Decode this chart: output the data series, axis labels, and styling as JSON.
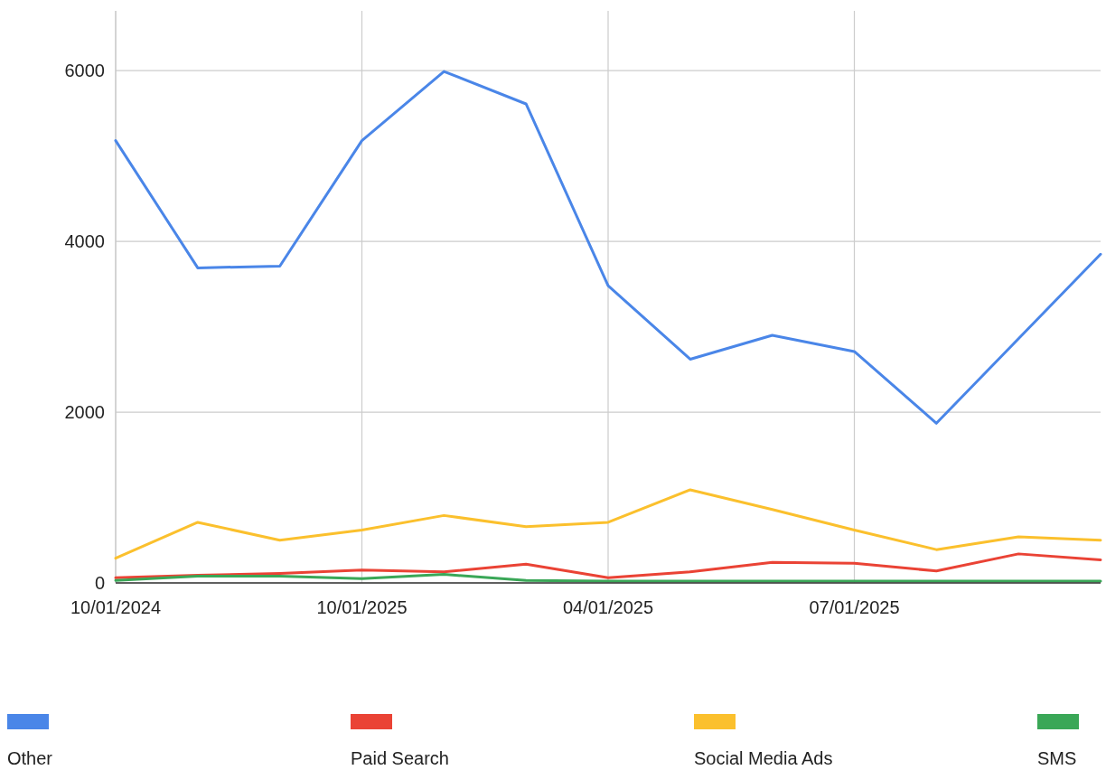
{
  "chart_data": {
    "type": "line",
    "categories": [
      "10/01/2024",
      null,
      null,
      "10/01/2025",
      null,
      null,
      "04/01/2025",
      null,
      null,
      "07/01/2025",
      null,
      null,
      null
    ],
    "series": [
      {
        "name": "Other",
        "color": "#4a86e8",
        "values": [
          5180,
          3690,
          3710,
          5180,
          5990,
          5610,
          3480,
          2620,
          2900,
          2710,
          1870,
          2860,
          3850
        ]
      },
      {
        "name": "Paid Search",
        "color": "#ea4335",
        "values": [
          60,
          90,
          110,
          150,
          130,
          220,
          60,
          130,
          240,
          230,
          140,
          340,
          270
        ]
      },
      {
        "name": "Social Media Ads",
        "color": "#fbc02d",
        "values": [
          290,
          710,
          500,
          620,
          790,
          660,
          710,
          1090,
          860,
          620,
          390,
          540,
          500
        ]
      },
      {
        "name": "SMS",
        "color": "#3aa757",
        "values": [
          30,
          80,
          80,
          50,
          100,
          30,
          20,
          20,
          20,
          20,
          20,
          20,
          20
        ]
      }
    ],
    "ylim": [
      0,
      6700
    ],
    "yticks": [
      0,
      2000,
      4000,
      6000
    ],
    "grid": true,
    "legend": "bottom",
    "marker": "none",
    "line_style": "solid"
  }
}
